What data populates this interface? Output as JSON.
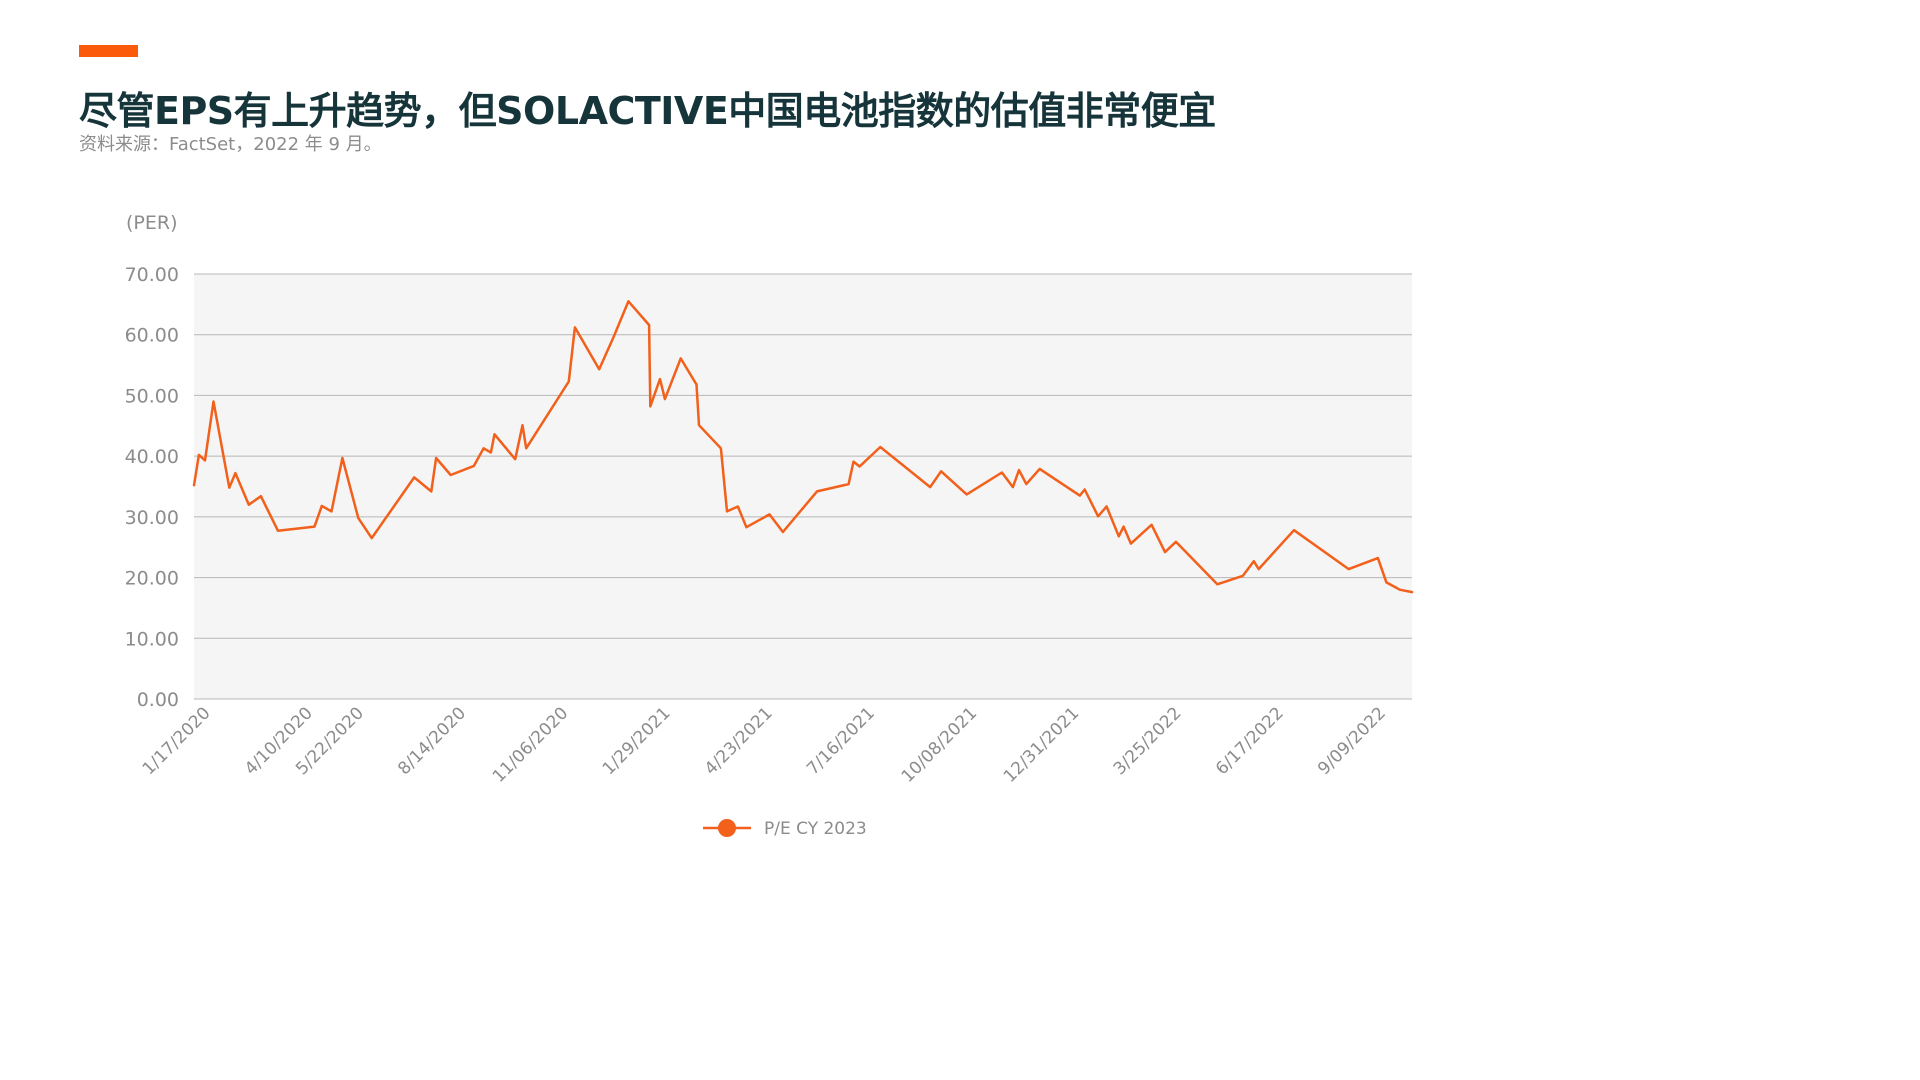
{
  "header": {
    "title": "尽管EPS有上升趋势，但SOLACTIVE中国电池指数的估值非常便宜",
    "subtitle": "资料来源：FactSet，2022 年 9 月。"
  },
  "colors": {
    "accent": "#fa5a0a",
    "line": "#f2601b",
    "plot_background": "#f5f5f5",
    "grid": "#b7b7b7",
    "title": "#16353a",
    "muted_text": "#8c8c8c"
  },
  "chart_data": {
    "type": "line",
    "title": "",
    "unit_label": "(PER)",
    "xlabel": "",
    "ylabel": "",
    "ylim": [
      0,
      70
    ],
    "yticks": [
      "0.00",
      "10.00",
      "20.00",
      "30.00",
      "40.00",
      "50.00",
      "60.00",
      "70.00"
    ],
    "xlim": [
      "2020-01-03",
      "2022-09-30"
    ],
    "x_tick_labels": [
      "1/17/2020",
      "4/10/2020",
      "5/22/2020",
      "8/14/2020",
      "11/06/2020",
      "1/29/2021",
      "4/23/2021",
      "7/16/2021",
      "10/08/2021",
      "12/31/2021",
      "3/25/2022",
      "6/17/2022",
      "9/09/2022"
    ],
    "x_tick_dates": [
      "2020-01-17",
      "2020-04-10",
      "2020-05-22",
      "2020-08-14",
      "2020-11-06",
      "2021-01-29",
      "2021-04-23",
      "2021-07-16",
      "2021-10-08",
      "2021-12-31",
      "2022-03-25",
      "2022-06-17",
      "2022-09-09"
    ],
    "grid": true,
    "legend_position": "bottom-center",
    "series": [
      {
        "name": "P/E CY 2023",
        "points": [
          [
            "2020-01-03",
            35.2
          ],
          [
            "2020-01-07",
            40.2
          ],
          [
            "2020-01-12",
            39.3
          ],
          [
            "2020-01-19",
            49.0
          ],
          [
            "2020-02-01",
            34.8
          ],
          [
            "2020-02-06",
            37.2
          ],
          [
            "2020-02-17",
            32.0
          ],
          [
            "2020-02-27",
            33.4
          ],
          [
            "2020-03-12",
            27.7
          ],
          [
            "2020-04-11",
            28.4
          ],
          [
            "2020-04-17",
            31.8
          ],
          [
            "2020-04-25",
            30.9
          ],
          [
            "2020-05-04",
            39.7
          ],
          [
            "2020-05-17",
            29.8
          ],
          [
            "2020-05-28",
            26.5
          ],
          [
            "2020-07-02",
            36.5
          ],
          [
            "2020-07-16",
            34.2
          ],
          [
            "2020-07-20",
            39.7
          ],
          [
            "2020-08-01",
            36.9
          ],
          [
            "2020-08-20",
            38.4
          ],
          [
            "2020-08-28",
            41.3
          ],
          [
            "2020-09-03",
            40.6
          ],
          [
            "2020-09-06",
            43.6
          ],
          [
            "2020-09-23",
            39.5
          ],
          [
            "2020-09-29",
            45.1
          ],
          [
            "2020-10-02",
            41.3
          ],
          [
            "2020-11-06",
            52.3
          ],
          [
            "2020-11-11",
            61.2
          ],
          [
            "2020-12-01",
            54.3
          ],
          [
            "2020-12-13",
            59.7
          ],
          [
            "2020-12-25",
            65.5
          ],
          [
            "2021-01-11",
            61.6
          ],
          [
            "2021-01-12",
            48.2
          ],
          [
            "2021-01-20",
            52.7
          ],
          [
            "2021-01-24",
            49.4
          ],
          [
            "2021-02-06",
            56.1
          ],
          [
            "2021-02-19",
            51.8
          ],
          [
            "2021-02-21",
            45.1
          ],
          [
            "2021-03-11",
            41.3
          ],
          [
            "2021-03-16",
            30.9
          ],
          [
            "2021-03-25",
            31.7
          ],
          [
            "2021-04-01",
            28.3
          ],
          [
            "2021-04-20",
            30.4
          ],
          [
            "2021-05-01",
            27.5
          ],
          [
            "2021-05-29",
            34.2
          ],
          [
            "2021-06-24",
            35.4
          ],
          [
            "2021-06-28",
            39.1
          ],
          [
            "2021-07-03",
            38.3
          ],
          [
            "2021-07-20",
            41.5
          ],
          [
            "2021-08-30",
            34.9
          ],
          [
            "2021-09-08",
            37.5
          ],
          [
            "2021-09-29",
            33.7
          ],
          [
            "2021-10-28",
            37.3
          ],
          [
            "2021-11-06",
            34.9
          ],
          [
            "2021-11-11",
            37.7
          ],
          [
            "2021-11-17",
            35.4
          ],
          [
            "2021-11-28",
            37.9
          ],
          [
            "2021-12-31",
            33.5
          ],
          [
            "2022-01-04",
            34.5
          ],
          [
            "2022-01-15",
            30.1
          ],
          [
            "2022-01-22",
            31.7
          ],
          [
            "2022-02-01",
            26.8
          ],
          [
            "2022-02-05",
            28.4
          ],
          [
            "2022-02-11",
            25.6
          ],
          [
            "2022-02-28",
            28.7
          ],
          [
            "2022-03-11",
            24.2
          ],
          [
            "2022-03-20",
            25.9
          ],
          [
            "2022-04-23",
            18.9
          ],
          [
            "2022-05-14",
            20.3
          ],
          [
            "2022-05-23",
            22.7
          ],
          [
            "2022-05-27",
            21.4
          ],
          [
            "2022-06-25",
            27.8
          ],
          [
            "2022-08-09",
            21.4
          ],
          [
            "2022-09-02",
            23.2
          ],
          [
            "2022-09-09",
            19.2
          ],
          [
            "2022-09-20",
            18.0
          ],
          [
            "2022-09-30",
            17.6
          ]
        ]
      }
    ]
  }
}
